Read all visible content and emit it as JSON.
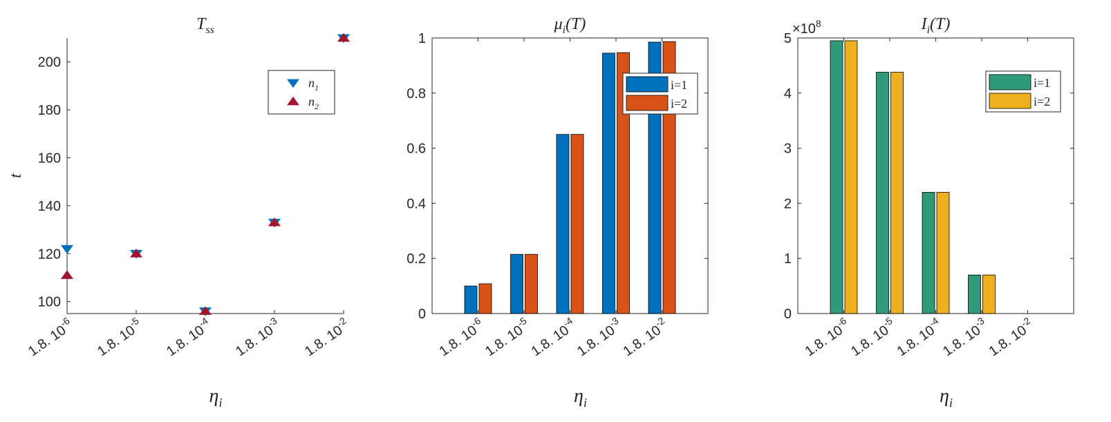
{
  "colors": {
    "blue": "#0072BD",
    "orange": "#D95319",
    "green": "#319A7A",
    "gold": "#EDB120",
    "crimson": "#A2142F",
    "axis": "#262626"
  },
  "chart_data": [
    {
      "type": "scatter",
      "title": "T_ss",
      "title_main": "T",
      "title_sub": "ss",
      "xlabel_main": "η",
      "xlabel_sub": "i",
      "ylabel": "t",
      "categories": [
        "1.8. 10^-6",
        "1.8. 10^-5",
        "1.8. 10^-4",
        "1.8. 10^-3",
        "1.8. 10^-2"
      ],
      "tick_base": "1.8. 10",
      "tick_exps": [
        "-6",
        "-5",
        "-4",
        "-3",
        "-2"
      ],
      "ylim": [
        95,
        210
      ],
      "yticks": [
        100,
        120,
        140,
        160,
        180,
        200
      ],
      "legend_position": "top-right",
      "series": [
        {
          "name": "n_1",
          "name_main": "n",
          "name_sub": "1",
          "marker": "triangle-down",
          "color": "blue",
          "values": [
            122,
            120,
            96,
            133,
            210
          ]
        },
        {
          "name": "n_2",
          "name_main": "n",
          "name_sub": "2",
          "marker": "triangle-up",
          "color": "crimson",
          "values": [
            111,
            120,
            96,
            133,
            210
          ]
        }
      ]
    },
    {
      "type": "bar",
      "title": "μ_i(T)",
      "title_main": "μ",
      "title_sub": "i",
      "title_suffix": "(T)",
      "xlabel_main": "η",
      "xlabel_sub": "i",
      "categories": [
        "1.8. 10^-6",
        "1.8. 10^-5",
        "1.8. 10^-4",
        "1.8. 10^-3",
        "1.8. 10^-2"
      ],
      "tick_base": "1.8. 10",
      "tick_exps": [
        "-6",
        "-5",
        "-4",
        "-3",
        "-2"
      ],
      "ylim": [
        0,
        1
      ],
      "yticks": [
        0,
        0.2,
        0.4,
        0.6,
        0.8,
        1
      ],
      "ytick_labels": [
        "0",
        "0.2",
        "0.4",
        "0.6",
        "0.8",
        "1"
      ],
      "legend_position": "top-right",
      "series": [
        {
          "name": "i=1",
          "color": "blue",
          "values": [
            0.1,
            0.215,
            0.65,
            0.945,
            0.985
          ]
        },
        {
          "name": "i=2",
          "color": "orange",
          "values": [
            0.108,
            0.215,
            0.65,
            0.947,
            0.987
          ]
        }
      ]
    },
    {
      "type": "bar",
      "title": "I_i(T)",
      "title_main": "I",
      "title_sub": "i",
      "title_suffix": "(T)",
      "xlabel_main": "η",
      "xlabel_sub": "i",
      "categories": [
        "1.8. 10^-6",
        "1.8. 10^-5",
        "1.8. 10^-4",
        "1.8. 10^-3",
        "1.8. 10^-2"
      ],
      "tick_base": "1.8. 10",
      "tick_exps": [
        "-6",
        "-5",
        "-4",
        "-3",
        "-2"
      ],
      "ylim": [
        0,
        500000000
      ],
      "yticks": [
        0,
        100000000,
        200000000,
        300000000,
        400000000,
        500000000
      ],
      "ytick_labels": [
        "0",
        "1",
        "2",
        "3",
        "4",
        "5"
      ],
      "exponent_base": "×10",
      "exponent_power": "8",
      "legend_position": "top-right",
      "series": [
        {
          "name": "i=1",
          "color": "green",
          "values": [
            495000000,
            438000000,
            220000000,
            70000000,
            0
          ]
        },
        {
          "name": "i=2",
          "color": "gold",
          "values": [
            495000000,
            438000000,
            220000000,
            70000000,
            0
          ]
        }
      ]
    }
  ]
}
